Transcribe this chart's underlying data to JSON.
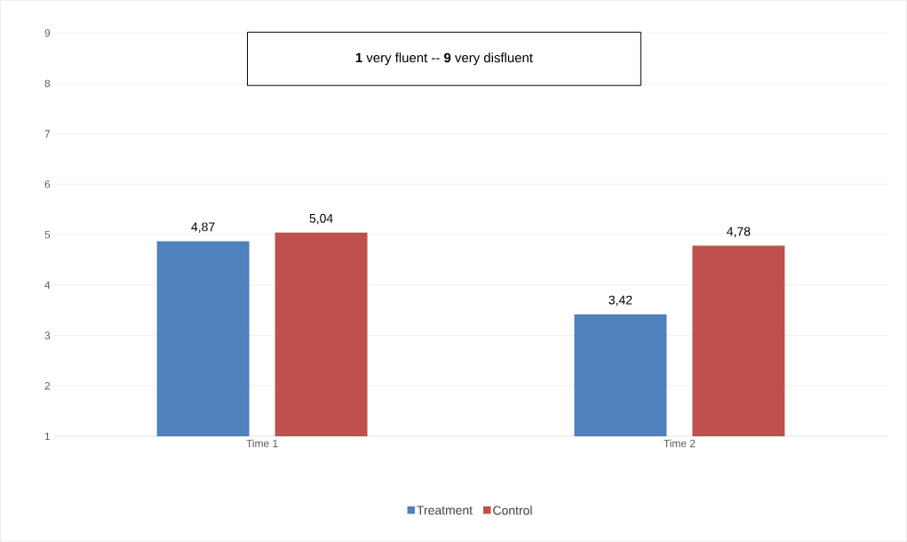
{
  "chart_data": {
    "type": "bar",
    "categories": [
      "Time 1",
      "Time 2"
    ],
    "series": [
      {
        "name": "Treatment",
        "color": "#4f81bd",
        "values": [
          4.87,
          3.42
        ],
        "value_labels": [
          "4,87",
          "3,42"
        ]
      },
      {
        "name": "Control",
        "color": "#c0504d",
        "values": [
          5.04,
          4.78
        ],
        "value_labels": [
          "5,04",
          "4,78"
        ]
      }
    ],
    "ylim": [
      1,
      9
    ],
    "yticks": [
      1,
      2,
      3,
      4,
      5,
      6,
      7,
      8,
      9
    ],
    "grid": "y",
    "legend": "bottom",
    "annotations": [
      "**1** very fluent -- **9** very disfluent"
    ]
  }
}
